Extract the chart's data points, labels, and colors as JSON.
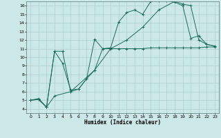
{
  "title": "",
  "xlabel": "Humidex (Indice chaleur)",
  "ylabel": "",
  "bg_color": "#cce8e8",
  "grid_color": "#aacfcf",
  "line_color": "#1a6b5a",
  "xlim": [
    -0.5,
    23.5
  ],
  "ylim": [
    3.5,
    16.5
  ],
  "xticks": [
    0,
    1,
    2,
    3,
    4,
    5,
    6,
    7,
    8,
    9,
    10,
    11,
    12,
    13,
    14,
    15,
    16,
    17,
    18,
    19,
    20,
    21,
    22,
    23
  ],
  "yticks": [
    4,
    5,
    6,
    7,
    8,
    9,
    10,
    11,
    12,
    13,
    14,
    15,
    16
  ],
  "line1_x": [
    0,
    1,
    2,
    3,
    4,
    5,
    6,
    7,
    8,
    9,
    10,
    11,
    12,
    13,
    14,
    15,
    16,
    17,
    18,
    19,
    20,
    21,
    22,
    23
  ],
  "line1_y": [
    5.0,
    5.2,
    4.2,
    10.7,
    9.3,
    6.2,
    6.3,
    7.5,
    12.1,
    11.0,
    11.1,
    14.1,
    15.2,
    15.5,
    15.0,
    16.5,
    16.6,
    16.6,
    16.4,
    16.0,
    12.2,
    12.5,
    11.5,
    11.3
  ],
  "line2_x": [
    0,
    1,
    2,
    3,
    4,
    5,
    6,
    7,
    8,
    9,
    10,
    11,
    12,
    13,
    14,
    15,
    16,
    17,
    18,
    19,
    20,
    21,
    22,
    23
  ],
  "line2_y": [
    5.0,
    5.1,
    4.2,
    10.7,
    10.7,
    6.0,
    6.3,
    7.5,
    8.5,
    11.0,
    11.0,
    11.0,
    11.0,
    11.0,
    11.0,
    11.1,
    11.1,
    11.1,
    11.1,
    11.1,
    11.1,
    11.1,
    11.2,
    11.2
  ],
  "line3_x": [
    0,
    1,
    2,
    3,
    5,
    8,
    10,
    12,
    14,
    16,
    18,
    19,
    20,
    21,
    22,
    23
  ],
  "line3_y": [
    5.0,
    5.1,
    4.2,
    5.5,
    6.0,
    8.5,
    11.0,
    12.0,
    13.5,
    15.5,
    16.5,
    16.2,
    16.0,
    12.0,
    11.5,
    11.3
  ]
}
